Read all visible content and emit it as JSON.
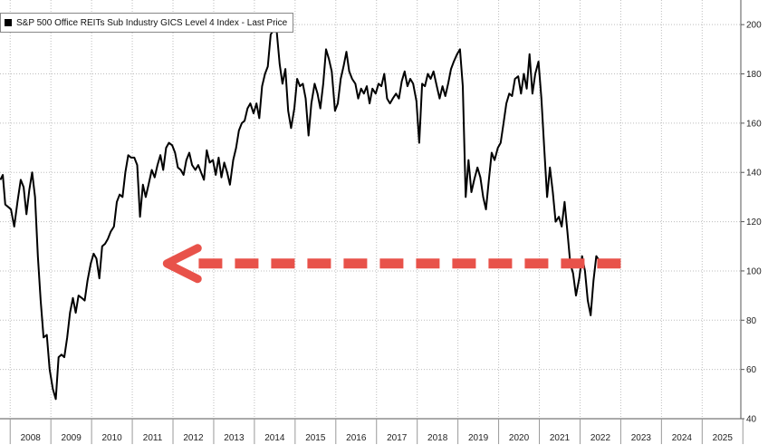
{
  "chart_data": {
    "type": "line",
    "title": "",
    "xlabel": "",
    "ylabel": "",
    "legend": {
      "placement": "top-left"
    },
    "grid": true,
    "ylim": [
      40,
      210
    ],
    "xlim": [
      2007.75,
      2025.95
    ],
    "x_ticks": [
      "2008",
      "2009",
      "2010",
      "2011",
      "2012",
      "2013",
      "2014",
      "2015",
      "2016",
      "2017",
      "2018",
      "2019",
      "2020",
      "2021",
      "2022",
      "2023",
      "2024",
      "2025"
    ],
    "y_ticks": [
      40,
      60,
      80,
      100,
      120,
      140,
      160,
      180,
      200
    ],
    "series": [
      {
        "name": "S&P 500 Office REITs Sub Industry GICS Level 4 Index - Last Price",
        "color": "#000000",
        "points": [
          [
            2007.76,
            137
          ],
          [
            2007.82,
            139
          ],
          [
            2007.88,
            127
          ],
          [
            2007.95,
            126
          ],
          [
            2008.02,
            125
          ],
          [
            2008.1,
            118
          ],
          [
            2008.18,
            128
          ],
          [
            2008.26,
            137
          ],
          [
            2008.33,
            134
          ],
          [
            2008.4,
            123
          ],
          [
            2008.47,
            133
          ],
          [
            2008.54,
            140
          ],
          [
            2008.61,
            130
          ],
          [
            2008.68,
            106
          ],
          [
            2008.75,
            88
          ],
          [
            2008.82,
            73
          ],
          [
            2008.9,
            74
          ],
          [
            2008.97,
            60
          ],
          [
            2009.05,
            52
          ],
          [
            2009.12,
            48
          ],
          [
            2009.19,
            65
          ],
          [
            2009.26,
            66
          ],
          [
            2009.33,
            65
          ],
          [
            2009.4,
            73
          ],
          [
            2009.47,
            83
          ],
          [
            2009.54,
            89
          ],
          [
            2009.61,
            83
          ],
          [
            2009.68,
            90
          ],
          [
            2009.76,
            89
          ],
          [
            2009.83,
            88
          ],
          [
            2009.9,
            96
          ],
          [
            2009.98,
            103
          ],
          [
            2010.05,
            107
          ],
          [
            2010.12,
            105
          ],
          [
            2010.19,
            97
          ],
          [
            2010.26,
            110
          ],
          [
            2010.33,
            111
          ],
          [
            2010.4,
            113
          ],
          [
            2010.47,
            116
          ],
          [
            2010.55,
            118
          ],
          [
            2010.62,
            128
          ],
          [
            2010.69,
            131
          ],
          [
            2010.76,
            130
          ],
          [
            2010.83,
            140
          ],
          [
            2010.9,
            147
          ],
          [
            2010.97,
            146
          ],
          [
            2011.05,
            146
          ],
          [
            2011.12,
            143
          ],
          [
            2011.19,
            122
          ],
          [
            2011.26,
            135
          ],
          [
            2011.33,
            130
          ],
          [
            2011.4,
            135
          ],
          [
            2011.48,
            141
          ],
          [
            2011.55,
            138
          ],
          [
            2011.62,
            143
          ],
          [
            2011.69,
            147
          ],
          [
            2011.76,
            141
          ],
          [
            2011.83,
            150
          ],
          [
            2011.9,
            152
          ],
          [
            2011.98,
            151
          ],
          [
            2012.05,
            148
          ],
          [
            2012.12,
            142
          ],
          [
            2012.19,
            141
          ],
          [
            2012.26,
            139
          ],
          [
            2012.33,
            145
          ],
          [
            2012.4,
            148
          ],
          [
            2012.47,
            143
          ],
          [
            2012.55,
            141
          ],
          [
            2012.62,
            143
          ],
          [
            2012.69,
            140
          ],
          [
            2012.76,
            137
          ],
          [
            2012.83,
            149
          ],
          [
            2012.9,
            144
          ],
          [
            2012.98,
            145
          ],
          [
            2013.05,
            139
          ],
          [
            2013.12,
            146
          ],
          [
            2013.19,
            138
          ],
          [
            2013.26,
            144
          ],
          [
            2013.33,
            140
          ],
          [
            2013.4,
            135
          ],
          [
            2013.48,
            145
          ],
          [
            2013.55,
            150
          ],
          [
            2013.62,
            157
          ],
          [
            2013.69,
            160
          ],
          [
            2013.76,
            161
          ],
          [
            2013.83,
            166
          ],
          [
            2013.9,
            168
          ],
          [
            2013.98,
            164
          ],
          [
            2014.05,
            168
          ],
          [
            2014.12,
            162
          ],
          [
            2014.19,
            175
          ],
          [
            2014.26,
            180
          ],
          [
            2014.33,
            183
          ],
          [
            2014.4,
            196
          ],
          [
            2014.48,
            198
          ],
          [
            2014.55,
            197
          ],
          [
            2014.62,
            184
          ],
          [
            2014.69,
            176
          ],
          [
            2014.76,
            182
          ],
          [
            2014.83,
            165
          ],
          [
            2014.9,
            158
          ],
          [
            2014.98,
            166
          ],
          [
            2015.05,
            178
          ],
          [
            2015.12,
            175
          ],
          [
            2015.19,
            176
          ],
          [
            2015.26,
            170
          ],
          [
            2015.33,
            155
          ],
          [
            2015.4,
            168
          ],
          [
            2015.48,
            176
          ],
          [
            2015.55,
            172
          ],
          [
            2015.62,
            166
          ],
          [
            2015.69,
            176
          ],
          [
            2015.76,
            190
          ],
          [
            2015.83,
            186
          ],
          [
            2015.9,
            181
          ],
          [
            2015.98,
            165
          ],
          [
            2016.05,
            168
          ],
          [
            2016.12,
            178
          ],
          [
            2016.19,
            183
          ],
          [
            2016.26,
            189
          ],
          [
            2016.33,
            181
          ],
          [
            2016.4,
            178
          ],
          [
            2016.48,
            176
          ],
          [
            2016.55,
            170
          ],
          [
            2016.62,
            174
          ],
          [
            2016.69,
            172
          ],
          [
            2016.76,
            175
          ],
          [
            2016.83,
            168
          ],
          [
            2016.9,
            174
          ],
          [
            2016.98,
            172
          ],
          [
            2017.05,
            176
          ],
          [
            2017.12,
            175
          ],
          [
            2017.19,
            180
          ],
          [
            2017.26,
            170
          ],
          [
            2017.33,
            168
          ],
          [
            2017.4,
            170
          ],
          [
            2017.48,
            172
          ],
          [
            2017.55,
            170
          ],
          [
            2017.62,
            177
          ],
          [
            2017.69,
            181
          ],
          [
            2017.76,
            175
          ],
          [
            2017.83,
            178
          ],
          [
            2017.9,
            176
          ],
          [
            2017.98,
            169
          ],
          [
            2018.05,
            152
          ],
          [
            2018.12,
            176
          ],
          [
            2018.19,
            175
          ],
          [
            2018.26,
            180
          ],
          [
            2018.33,
            178
          ],
          [
            2018.4,
            181
          ],
          [
            2018.48,
            175
          ],
          [
            2018.55,
            170
          ],
          [
            2018.62,
            175
          ],
          [
            2018.69,
            171
          ],
          [
            2018.76,
            176
          ],
          [
            2018.83,
            182
          ],
          [
            2018.9,
            185
          ],
          [
            2018.98,
            188
          ],
          [
            2019.05,
            190
          ],
          [
            2019.12,
            175
          ],
          [
            2019.19,
            130
          ],
          [
            2019.26,
            145
          ],
          [
            2019.33,
            132
          ],
          [
            2019.4,
            137
          ],
          [
            2019.48,
            142
          ],
          [
            2019.55,
            138
          ],
          [
            2019.62,
            130
          ],
          [
            2019.69,
            125
          ],
          [
            2019.76,
            137
          ],
          [
            2019.83,
            148
          ],
          [
            2019.9,
            145
          ],
          [
            2019.98,
            150
          ],
          [
            2020.05,
            152
          ],
          [
            2020.12,
            160
          ],
          [
            2020.19,
            168
          ],
          [
            2020.26,
            172
          ],
          [
            2020.33,
            171
          ],
          [
            2020.4,
            178
          ],
          [
            2020.48,
            179
          ],
          [
            2020.55,
            172
          ],
          [
            2020.62,
            180
          ],
          [
            2020.69,
            174
          ],
          [
            2020.76,
            188
          ],
          [
            2020.83,
            172
          ],
          [
            2020.9,
            180
          ],
          [
            2020.98,
            185
          ],
          [
            2021.05,
            170
          ],
          [
            2021.12,
            150
          ],
          [
            2021.19,
            130
          ],
          [
            2021.26,
            142
          ],
          [
            2021.33,
            132
          ],
          [
            2021.4,
            120
          ],
          [
            2021.48,
            122
          ],
          [
            2021.55,
            118
          ],
          [
            2021.62,
            128
          ],
          [
            2021.69,
            116
          ],
          [
            2021.76,
            103
          ],
          [
            2021.83,
            99
          ],
          [
            2021.9,
            90
          ],
          [
            2021.98,
            97
          ],
          [
            2022.05,
            106
          ],
          [
            2022.12,
            100
          ],
          [
            2022.19,
            88
          ],
          [
            2022.26,
            82
          ],
          [
            2022.33,
            96
          ],
          [
            2022.4,
            106
          ],
          [
            2022.48,
            104
          ]
        ]
      }
    ],
    "annotations": [
      {
        "type": "arrow",
        "direction": "left",
        "style": "dashed",
        "color": "#e8524a",
        "from": [
          2023.0,
          103
        ],
        "to": [
          2011.85,
          103
        ]
      }
    ]
  }
}
